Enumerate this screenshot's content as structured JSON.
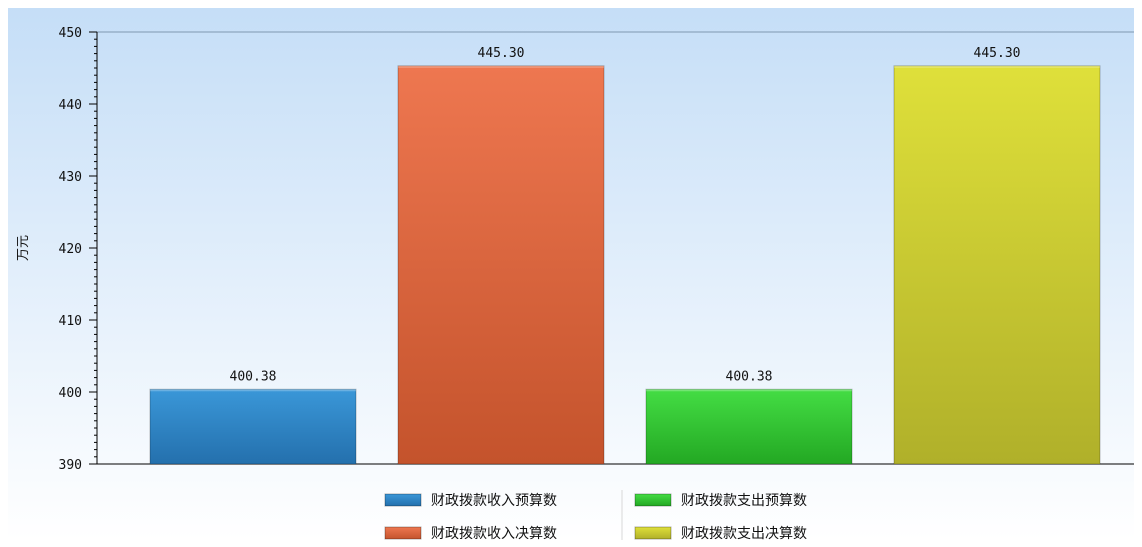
{
  "chart_data": {
    "type": "bar",
    "title": "",
    "xlabel": "",
    "ylabel": "万元",
    "ylim": [
      390,
      450
    ],
    "yticks": [
      390,
      400,
      410,
      420,
      430,
      440,
      450
    ],
    "grid": false,
    "legend_position": "bottom",
    "categories": [
      "财政拨款收入预算数",
      "财政拨款收入决算数",
      "财政拨款支出预算数",
      "财政拨款支出决算数"
    ],
    "series": [
      {
        "name": "财政拨款收入预算数",
        "value": 400.38,
        "label": "400.38",
        "color": "#2a86c8"
      },
      {
        "name": "财政拨款收入决算数",
        "value": 445.3,
        "label": "445.30",
        "color": "#e5683f"
      },
      {
        "name": "财政拨款支出预算数",
        "value": 400.38,
        "label": "400.38",
        "color": "#33cc33"
      },
      {
        "name": "财政拨款支出决算数",
        "value": 445.3,
        "label": "445.30",
        "color": "#d6d62f"
      }
    ],
    "legend_order": [
      0,
      2,
      1,
      3
    ]
  }
}
